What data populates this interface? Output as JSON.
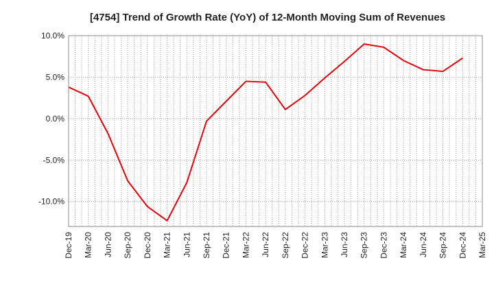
{
  "chart_data": {
    "type": "line",
    "title": "[4754]  Trend of Growth Rate (YoY) of 12-Month Moving Sum of Revenues",
    "xlabel": "",
    "ylabel": "",
    "ylim": [
      -13.0,
      10.0
    ],
    "y_ticks": [
      10.0,
      5.0,
      0.0,
      -5.0,
      -10.0
    ],
    "y_tick_labels": [
      "10.0%",
      "5.0%",
      "0.0%",
      "-5.0%",
      "-10.0%"
    ],
    "x_tick_labels": [
      "Dec-19",
      "Mar-20",
      "Jun-20",
      "Sep-20",
      "Dec-20",
      "Mar-21",
      "Jun-21",
      "Sep-21",
      "Dec-21",
      "Mar-22",
      "Jun-22",
      "Sep-22",
      "Dec-22",
      "Mar-23",
      "Jun-23",
      "Sep-23",
      "Dec-23",
      "Mar-24",
      "Jun-24",
      "Sep-24",
      "Dec-24",
      "Mar-25"
    ],
    "grid": true,
    "line_color": "#e8000b",
    "series": [
      {
        "x": [
          "Dec-19",
          "Mar-20",
          "Jun-20",
          "Sep-20",
          "Dec-20",
          "Mar-21",
          "Jun-21",
          "Sep-21",
          "Dec-21",
          "Mar-22",
          "Jun-22",
          "Sep-22",
          "Dec-22",
          "Mar-23",
          "Jun-23",
          "Sep-23",
          "Dec-23",
          "Mar-24",
          "Jun-24",
          "Sep-24",
          "Dec-24"
        ],
        "values": [
          3.8,
          2.7,
          -1.8,
          -7.5,
          -10.6,
          -12.3,
          -7.7,
          -0.3,
          2.1,
          4.5,
          4.4,
          1.1,
          2.8,
          4.9,
          6.9,
          9.0,
          8.6,
          7.0,
          5.9,
          5.7,
          7.3
        ]
      }
    ]
  }
}
